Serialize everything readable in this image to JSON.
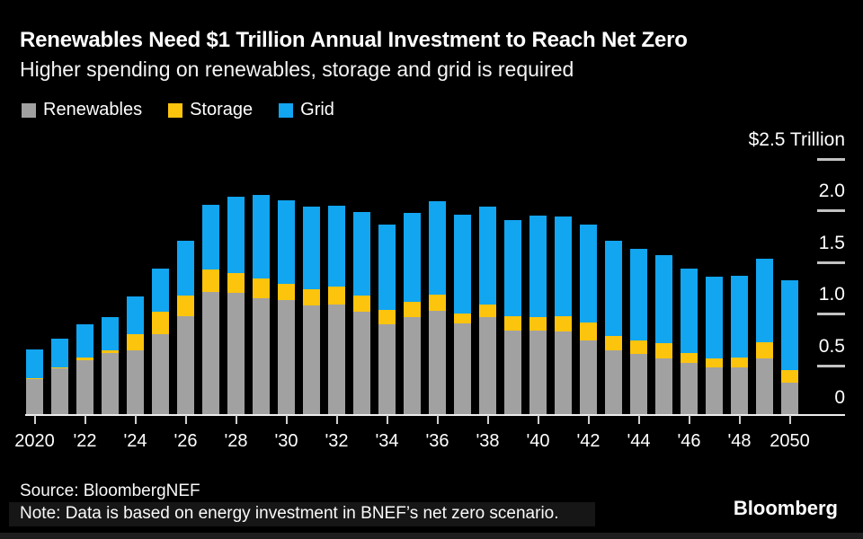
{
  "header": {
    "title": "Renewables Need $1 Trillion Annual Investment to Reach Net Zero",
    "subtitle": "Higher spending on renewables, storage and grid is required"
  },
  "legend": {
    "items": [
      {
        "label": "Renewables",
        "color": "#a1a1a1"
      },
      {
        "label": "Storage",
        "color": "#fdc40d"
      },
      {
        "label": "Grid",
        "color": "#12a5f0"
      }
    ]
  },
  "y_axis": {
    "ticks": [
      {
        "value": 2.5,
        "label": "$2.5 Trillion"
      },
      {
        "value": 2.0,
        "label": "2.0"
      },
      {
        "value": 1.5,
        "label": "1.5"
      },
      {
        "value": 1.0,
        "label": "1.0"
      },
      {
        "value": 0.5,
        "label": "0.5"
      },
      {
        "value": 0,
        "label": "0"
      }
    ]
  },
  "x_axis": {
    "labels": [
      "2020",
      "'22",
      "'24",
      "'26",
      "'28",
      "'30",
      "'32",
      "'34",
      "'36",
      "'38",
      "'40",
      "'42",
      "'44",
      "'46",
      "'48",
      "2050"
    ]
  },
  "footer": {
    "source": "Source: BloombergNEF",
    "note": "Note: Data is based on energy investment in BNEF’s net zero scenario.",
    "brand": "Bloomberg"
  },
  "chart_data": {
    "type": "bar",
    "stacked": true,
    "title": "Renewables Need $1 Trillion Annual Investment to Reach Net Zero",
    "subtitle": "Higher spending on renewables, storage and grid is required",
    "unit": "USD trillion per year",
    "ylim": [
      0,
      2.5
    ],
    "y_tick_values": [
      0,
      0.5,
      1.0,
      1.5,
      2.0,
      2.5
    ],
    "legend_position": "top-left",
    "grid": "right-side tick dashes only",
    "categories": [
      2020,
      2021,
      2022,
      2023,
      2024,
      2025,
      2026,
      2027,
      2028,
      2029,
      2030,
      2031,
      2032,
      2033,
      2034,
      2035,
      2036,
      2037,
      2038,
      2039,
      2040,
      2041,
      2042,
      2043,
      2044,
      2045,
      2046,
      2047,
      2048,
      2049,
      2050
    ],
    "series": [
      {
        "name": "Renewables",
        "color": "#a1a1a1",
        "values": [
          0.36,
          0.46,
          0.54,
          0.61,
          0.64,
          0.79,
          0.97,
          1.2,
          1.19,
          1.14,
          1.12,
          1.07,
          1.08,
          1.01,
          0.89,
          0.96,
          1.02,
          0.9,
          0.96,
          0.83,
          0.83,
          0.82,
          0.73,
          0.64,
          0.6,
          0.56,
          0.51,
          0.47,
          0.47,
          0.56,
          0.32
        ]
      },
      {
        "name": "Storage",
        "color": "#fdc40d",
        "values": [
          0.01,
          0.01,
          0.03,
          0.03,
          0.16,
          0.22,
          0.2,
          0.22,
          0.19,
          0.19,
          0.16,
          0.16,
          0.17,
          0.16,
          0.14,
          0.15,
          0.16,
          0.1,
          0.12,
          0.14,
          0.13,
          0.15,
          0.17,
          0.14,
          0.13,
          0.15,
          0.1,
          0.09,
          0.1,
          0.16,
          0.12
        ]
      },
      {
        "name": "Grid",
        "color": "#12a5f0",
        "values": [
          0.28,
          0.28,
          0.32,
          0.32,
          0.37,
          0.42,
          0.53,
          0.63,
          0.74,
          0.81,
          0.81,
          0.8,
          0.78,
          0.81,
          0.83,
          0.86,
          0.91,
          0.96,
          0.95,
          0.93,
          0.98,
          0.97,
          0.95,
          0.92,
          0.89,
          0.85,
          0.82,
          0.79,
          0.79,
          0.81,
          0.87
        ]
      }
    ]
  }
}
